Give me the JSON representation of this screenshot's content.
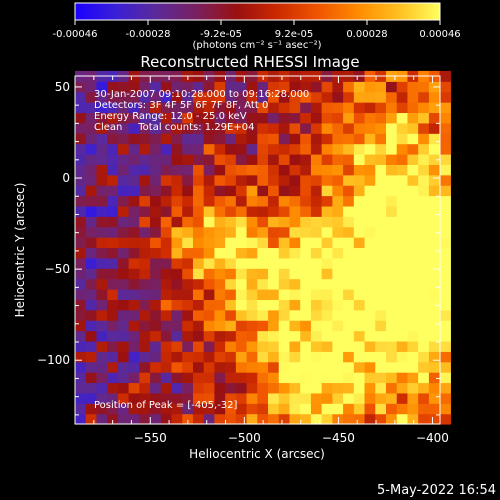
{
  "colors": {
    "background": "#000000",
    "foreground": "#ffffff",
    "colormap": [
      "#1a00ff",
      "#3a1fd6",
      "#5a2a9a",
      "#7a2060",
      "#9a1010",
      "#cc2a00",
      "#f05500",
      "#ff8c00",
      "#ffc020",
      "#ffff60"
    ]
  },
  "colorbar": {
    "ticks": [
      "-0.00046",
      "-0.00028",
      "-9.2e-05",
      "9.2e-05",
      "0.00028",
      "0.00046"
    ],
    "unit_label": "(photons cm⁻² s⁻¹ asec⁻²)"
  },
  "plot": {
    "title": "Reconstructed RHESSI Image",
    "info_lines": [
      "30-Jan-2007 09:10:28.000 to 09:16:28.000",
      "Detectors: 3F 4F 5F 6F 7F 8F, Att 0",
      "Energy Range: 12.0 - 25.0 keV",
      "Clean     Total counts: 1.29E+04"
    ],
    "peak_text": "Position of Peak = [-405,-32]"
  },
  "footer": {
    "timestamp": "5-May-2022 16:54"
  },
  "chart_data": {
    "type": "heatmap",
    "title": "Reconstructed RHESSI Image",
    "xlabel": "Heliocentric X (arcsec)",
    "ylabel": "Heliocentric Y (arcsec)",
    "xlim": [
      -590,
      -396
    ],
    "ylim": [
      -135,
      56
    ],
    "xticks": [
      -550,
      -500,
      -450,
      -400
    ],
    "yticks": [
      50,
      0,
      -50,
      -100
    ],
    "colorbar_range": [
      -0.00046,
      0.00046
    ],
    "peak_position": [
      -405,
      -32
    ],
    "hotspots": [
      {
        "x": -405,
        "y": -32,
        "intensity": 0.00046
      },
      {
        "x": -445,
        "y": -50,
        "intensity": 0.00036
      },
      {
        "x": -488,
        "y": -58,
        "intensity": 0.00034
      },
      {
        "x": -520,
        "y": -32,
        "intensity": 0.00033
      },
      {
        "x": -462,
        "y": -110,
        "intensity": 0.0004
      },
      {
        "x": -425,
        "y": 12,
        "intensity": 0.00026
      },
      {
        "x": -410,
        "y": -80,
        "intensity": 0.0003
      }
    ]
  }
}
